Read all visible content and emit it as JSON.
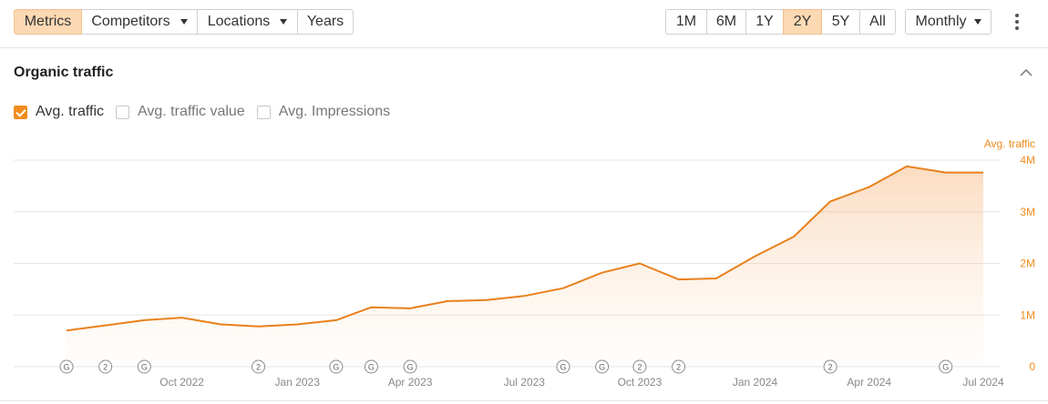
{
  "toolbar": {
    "tabs": [
      {
        "label": "Metrics",
        "active": true,
        "dropdown": false
      },
      {
        "label": "Competitors",
        "active": false,
        "dropdown": true
      },
      {
        "label": "Locations",
        "active": false,
        "dropdown": true
      },
      {
        "label": "Years",
        "active": false,
        "dropdown": false
      }
    ],
    "ranges": [
      {
        "label": "1M",
        "active": false
      },
      {
        "label": "6M",
        "active": false
      },
      {
        "label": "1Y",
        "active": false
      },
      {
        "label": "2Y",
        "active": true
      },
      {
        "label": "5Y",
        "active": false
      },
      {
        "label": "All",
        "active": false
      }
    ],
    "granularity": "Monthly",
    "more_icon": "kebab-menu-icon"
  },
  "section": {
    "title": "Organic traffic",
    "collapse_icon": "chevron-up-icon"
  },
  "legend": [
    {
      "label": "Avg. traffic",
      "checked": true
    },
    {
      "label": "Avg. traffic value",
      "checked": false
    },
    {
      "label": "Avg. Impressions",
      "checked": false
    }
  ],
  "colors": {
    "accent": "#f08c1f",
    "line": "#e9801c",
    "area": "#fbd9b8",
    "grid": "#e6e6e6",
    "marker": "#8a8a8a",
    "axis_text": "#888888",
    "y_text": "#f08c1f"
  },
  "chart_data": {
    "type": "area",
    "series": [
      {
        "name": "Avg. traffic",
        "x": [
          "2022-07-01",
          "2022-08-01",
          "2022-09-01",
          "2022-10-01",
          "2022-11-01",
          "2022-12-01",
          "2023-01-01",
          "2023-02-01",
          "2023-03-01",
          "2023-04-01",
          "2023-05-01",
          "2023-06-01",
          "2023-07-01",
          "2023-08-01",
          "2023-09-01",
          "2023-10-01",
          "2023-11-01",
          "2023-12-01",
          "2024-01-01",
          "2024-02-01",
          "2024-03-01",
          "2024-04-01",
          "2024-05-01",
          "2024-06-01",
          "2024-07-01"
        ],
        "values": [
          700000,
          800000,
          900000,
          950000,
          820000,
          780000,
          820000,
          900000,
          1150000,
          1130000,
          1270000,
          1290000,
          1370000,
          1520000,
          1820000,
          2000000,
          1690000,
          1710000,
          2140000,
          2520000,
          3200000,
          3480000,
          3880000,
          3760000,
          3760000
        ]
      }
    ],
    "y_label": "Avg. traffic",
    "y_ticks": [
      {
        "value": 0,
        "label": "0"
      },
      {
        "value": 1000000,
        "label": "1M"
      },
      {
        "value": 2000000,
        "label": "2M"
      },
      {
        "value": 3000000,
        "label": "3M"
      },
      {
        "value": 4000000,
        "label": "4M"
      }
    ],
    "ylim": [
      0,
      4000000
    ],
    "x_ticks": [
      {
        "date": "2022-10-01",
        "label": "Oct 2022"
      },
      {
        "date": "2023-01-01",
        "label": "Jan 2023"
      },
      {
        "date": "2023-04-01",
        "label": "Apr 2023"
      },
      {
        "date": "2023-07-01",
        "label": "Jul 2023"
      },
      {
        "date": "2023-10-01",
        "label": "Oct 2023"
      },
      {
        "date": "2024-01-01",
        "label": "Jan 2024"
      },
      {
        "date": "2024-04-01",
        "label": "Apr 2024"
      },
      {
        "date": "2024-07-01",
        "label": "Jul 2024"
      }
    ],
    "xlim": [
      "2022-07-01",
      "2024-07-01"
    ],
    "annotations": [
      {
        "date": "2022-07-01",
        "label": "G"
      },
      {
        "date": "2022-08-01",
        "label": "2"
      },
      {
        "date": "2022-09-01",
        "label": "G"
      },
      {
        "date": "2022-12-01",
        "label": "2"
      },
      {
        "date": "2023-02-01",
        "label": "G"
      },
      {
        "date": "2023-03-01",
        "label": "G"
      },
      {
        "date": "2023-04-01",
        "label": "G"
      },
      {
        "date": "2023-08-01",
        "label": "G"
      },
      {
        "date": "2023-09-01",
        "label": "G"
      },
      {
        "date": "2023-10-01",
        "label": "2"
      },
      {
        "date": "2023-11-01",
        "label": "2"
      },
      {
        "date": "2024-03-01",
        "label": "2"
      },
      {
        "date": "2024-06-01",
        "label": "G"
      }
    ],
    "grid": true
  }
}
